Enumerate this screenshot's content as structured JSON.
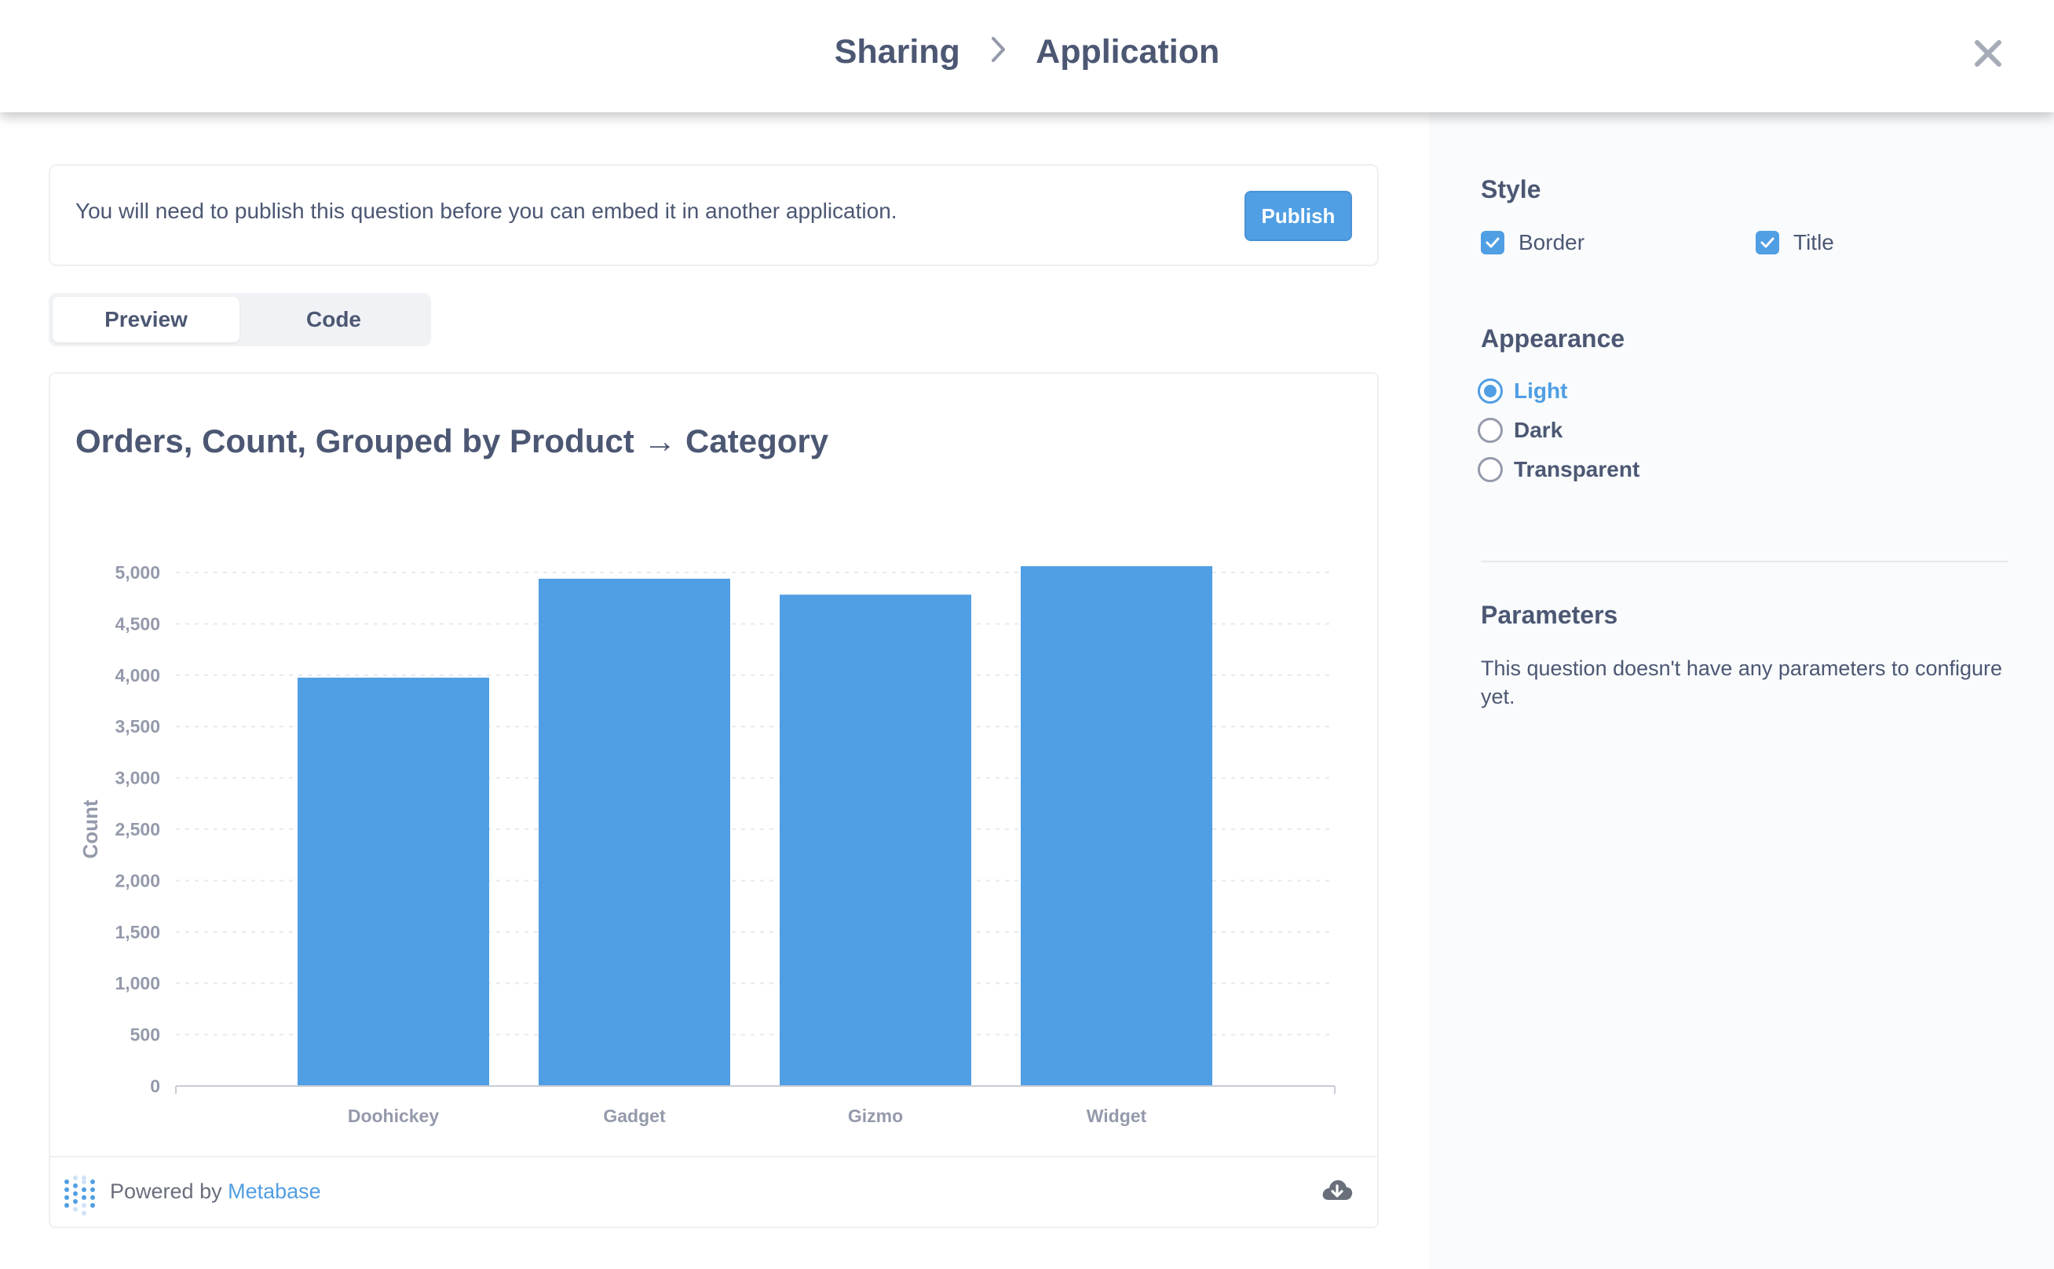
{
  "header": {
    "crumb_1": "Sharing",
    "crumb_sep": "›",
    "crumb_2": "Application",
    "close_icon": "close-icon"
  },
  "notice": {
    "text": "You will need to publish this question before you can embed it in another application.",
    "publish_label": "Publish"
  },
  "tabs": [
    {
      "label": "Preview",
      "active": true
    },
    {
      "label": "Code",
      "active": false
    }
  ],
  "card": {
    "title": "Orders, Count, Grouped by Product → Category",
    "footer": {
      "powered_prefix": "Powered by",
      "powered_brand": "Metabase",
      "logo_icon": "metabase-logo-icon",
      "download_icon": "download-icon"
    }
  },
  "chart_data": {
    "type": "bar",
    "categories": [
      "Doohickey",
      "Gadget",
      "Gizmo",
      "Widget"
    ],
    "values": [
      3976,
      4939,
      4784,
      5061
    ],
    "title": "Orders, Count, Grouped by Product → Category",
    "xlabel": "Product → Category",
    "ylabel": "Count",
    "ylim": [
      0,
      5000
    ],
    "yticks": [
      0,
      500,
      1000,
      1500,
      2000,
      2500,
      3000,
      3500,
      4000,
      4500,
      5000
    ],
    "ytick_labels": [
      "0",
      "500",
      "1,000",
      "1,500",
      "2,000",
      "2,500",
      "3,000",
      "3,500",
      "4,000",
      "4,500",
      "5,000"
    ],
    "grid": true,
    "color": "#509ee3"
  },
  "sidebar": {
    "style": {
      "title": "Style",
      "options": [
        {
          "label": "Border",
          "checked": true
        },
        {
          "label": "Title",
          "checked": true
        }
      ]
    },
    "appearance": {
      "title": "Appearance",
      "options": [
        {
          "label": "Light",
          "selected": true
        },
        {
          "label": "Dark",
          "selected": false
        },
        {
          "label": "Transparent",
          "selected": false
        }
      ]
    },
    "parameters": {
      "title": "Parameters",
      "text": "This question doesn't have any parameters to configure yet."
    }
  },
  "colors": {
    "accent": "#509ee3",
    "text": "#4c5773",
    "muted": "#949aab"
  }
}
